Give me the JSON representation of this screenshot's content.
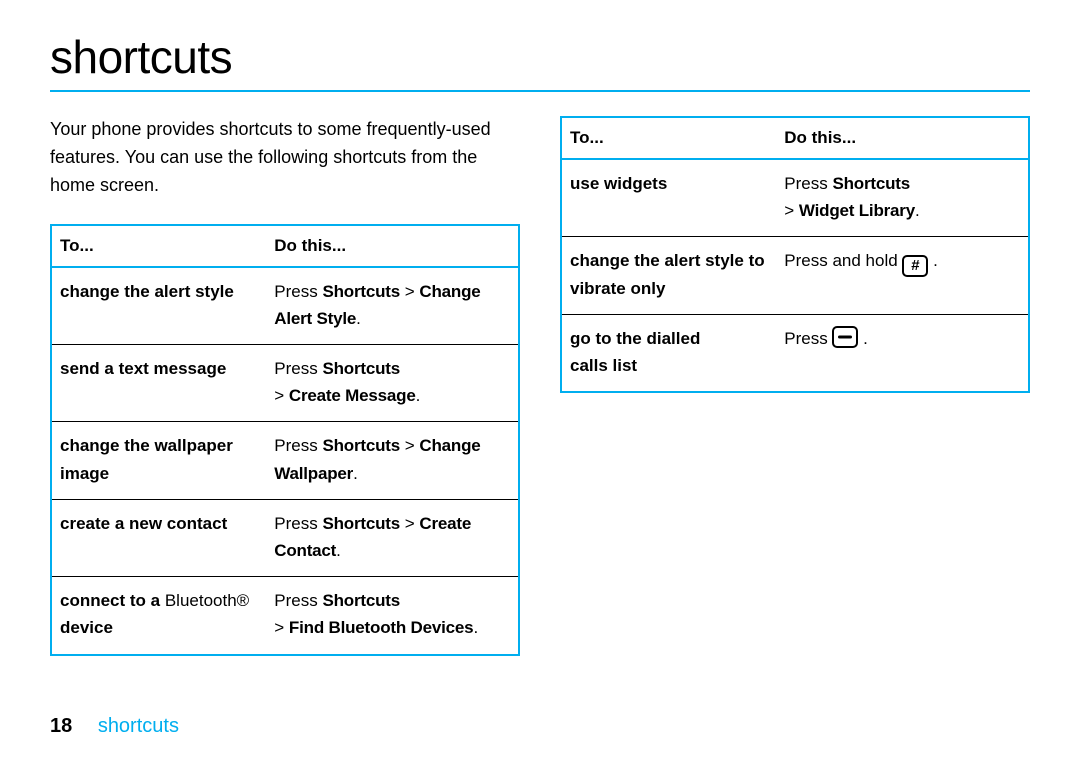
{
  "title": "shortcuts",
  "intro": "Your phone provides shortcuts to some frequently-used features. You can use the following shortcuts from the home screen.",
  "headers": {
    "to": "To...",
    "do": "Do this..."
  },
  "table1": {
    "rows": [
      {
        "to_html": "<span class='b'>change the alert style</span>",
        "do_html": "Press <span class='cond b'>Shortcuts</span> &gt; <span class='cond b'>Change Alert Style</span>."
      },
      {
        "to_html": "<span class='b'>send a text message</span>",
        "do_html": "Press <span class='cond b'>Shortcuts</span><br>&gt; <span class='cond b'>Create Message</span>."
      },
      {
        "to_html": "<span class='b'>change the wallpaper image</span>",
        "do_html": "Press <span class='cond b'>Shortcuts</span> &gt; <span class='cond b'>Change Wallpaper</span>."
      },
      {
        "to_html": "<span class='b'>create a new contact</span>",
        "do_html": "Press <span class='cond b'>Shortcuts</span> &gt; <span class='cond b'>Create Contact</span>."
      },
      {
        "to_html": "<span class='b'>connect to a</span> Bluetooth® <span class='b'>device</span>",
        "do_html": "Press <span class='cond b'>Shortcuts</span><br>&gt; <span class='cond b'>Find Bluetooth Devices</span>."
      }
    ]
  },
  "table2": {
    "rows": [
      {
        "to_html": "<span class='b'>use widgets</span>",
        "do_html": "Press <span class='cond b'>Shortcuts</span><br>&gt; <span class='cond b'>Widget Library</span>."
      },
      {
        "to_html": "<span class='b'>change the alert style to vibrate only</span>",
        "do_html": "Press and hold <span class='keybox'>#</span> ."
      },
      {
        "to_html": "<span class='b'>go to the dialled calls list</span>",
        "do_html": "Press <span class='keybox dash'><svg width='22' height='18' viewBox='0 0 22 18'><rect x='4' y='7.5' width='14' height='3' rx='1.5' fill='#000'/></svg></span> ."
      }
    ]
  },
  "footer": {
    "page": "18",
    "section": "shortcuts"
  },
  "colors": {
    "accent": "#00aeef",
    "text": "#000000",
    "bg": "#ffffff"
  }
}
